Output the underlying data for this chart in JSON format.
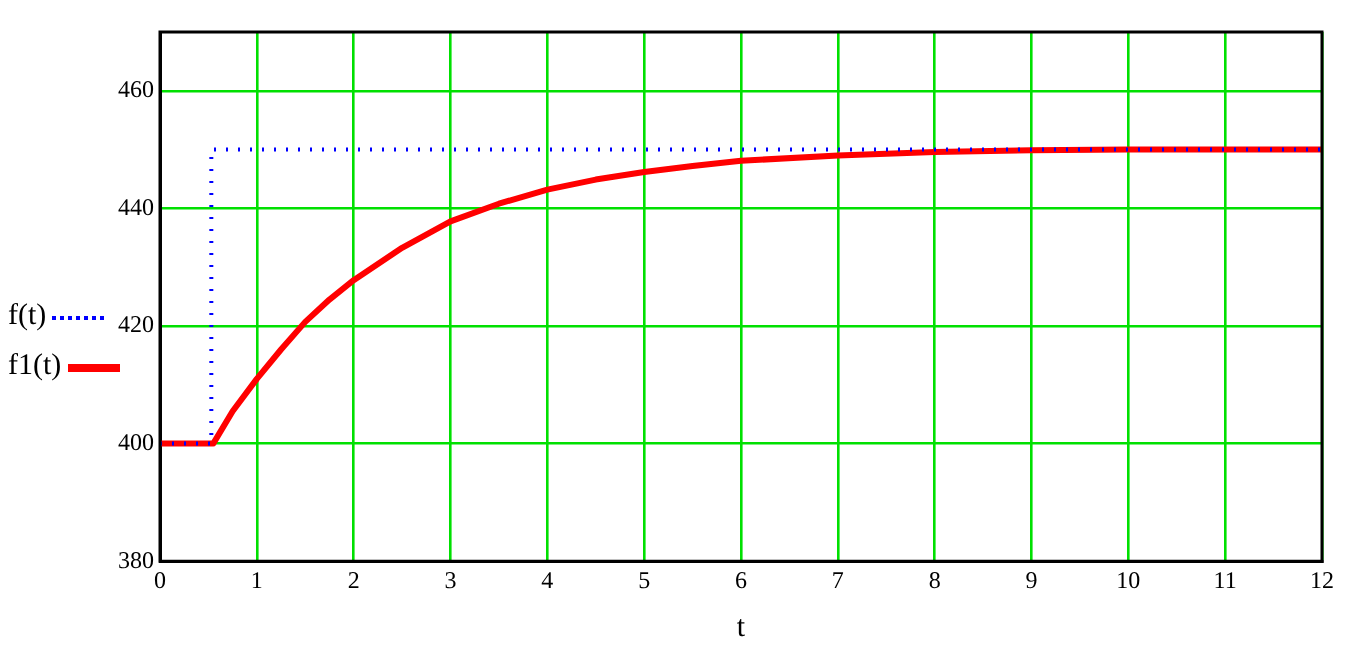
{
  "chart_data": {
    "type": "line",
    "xlabel": "t",
    "xlim": [
      0,
      12
    ],
    "xticks": [
      0,
      1,
      2,
      3,
      4,
      5,
      6,
      7,
      8,
      9,
      10,
      11,
      12
    ],
    "ylim": [
      380,
      470
    ],
    "yticks": [
      380,
      400,
      420,
      440,
      460
    ],
    "grid": true,
    "legend": "left",
    "marker": "none",
    "series": [
      {
        "name": "f(t)",
        "color": "#0000ff",
        "line_style": "dotted",
        "x": [
          0,
          0.53,
          0.53,
          12
        ],
        "values": [
          400,
          400,
          450,
          450
        ]
      },
      {
        "name": "f1(t)",
        "color": "#ff0000",
        "line_style": "solid",
        "x": [
          0,
          0.55,
          0.75,
          1,
          1.25,
          1.5,
          1.75,
          2,
          2.5,
          3,
          3.5,
          4,
          4.5,
          5,
          5.5,
          6,
          7,
          8,
          9,
          10,
          11,
          12
        ],
        "values": [
          400,
          400,
          405.5,
          411,
          416,
          420.7,
          424.5,
          427.8,
          433.3,
          437.8,
          440.8,
          443.2,
          444.9,
          446.2,
          447.2,
          448.1,
          449,
          449.6,
          449.9,
          450,
          450,
          450
        ]
      }
    ]
  }
}
